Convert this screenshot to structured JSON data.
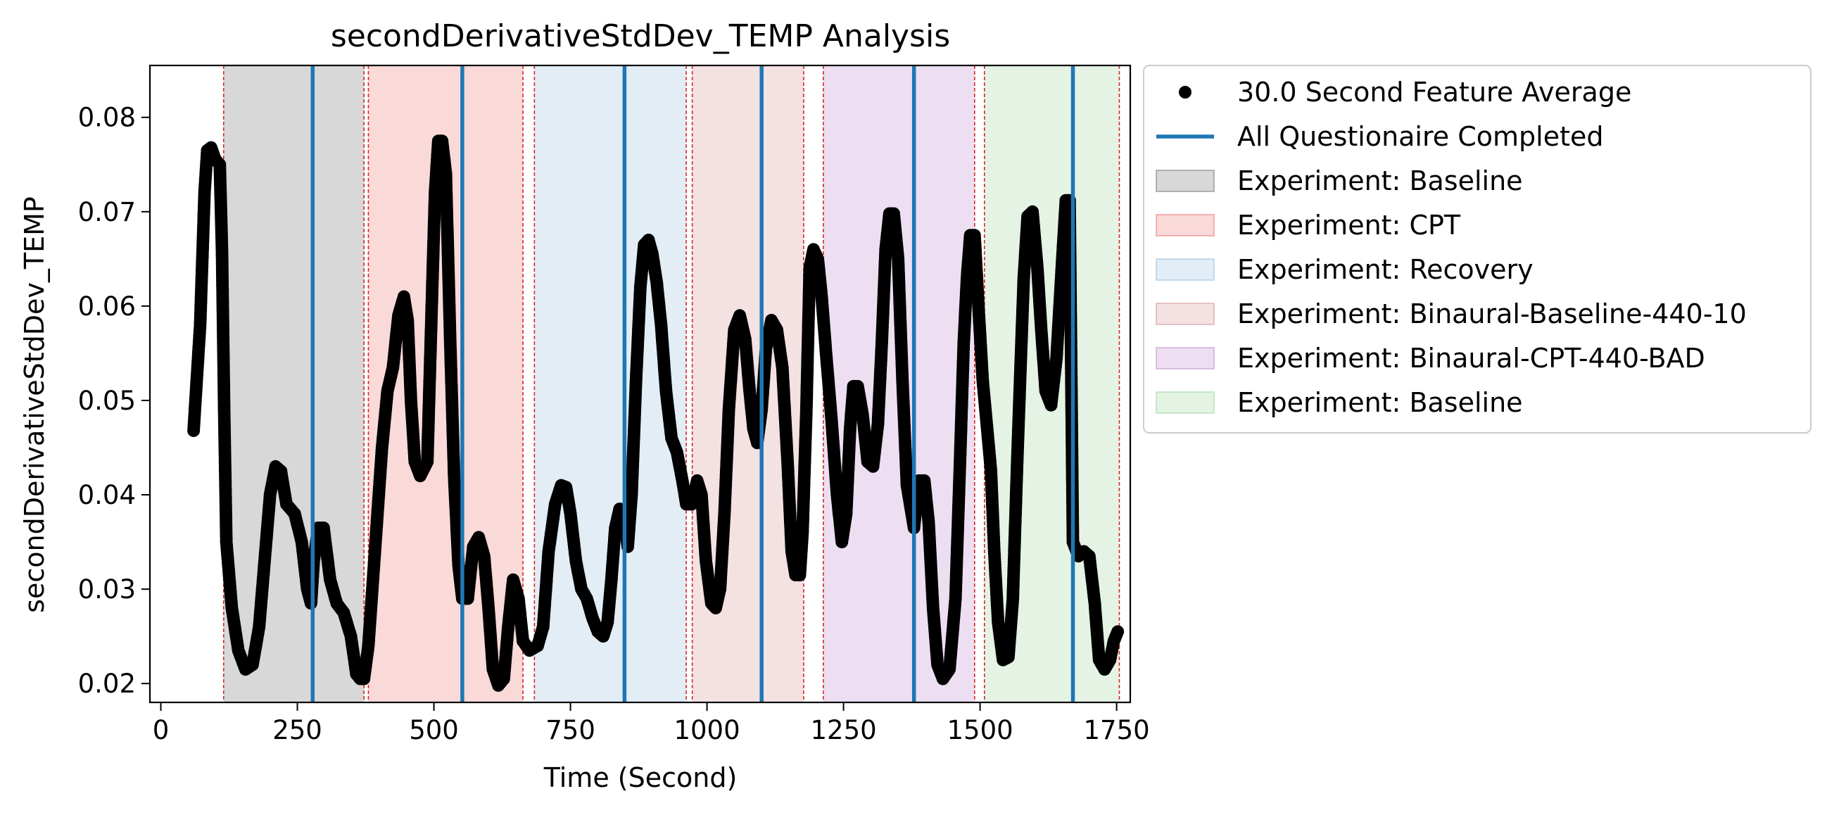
{
  "chart_data": {
    "type": "scatter",
    "title": "secondDerivativeStdDev_TEMP Analysis",
    "xlabel": "Time (Second)",
    "ylabel": "secondDerivativeStdDev_TEMP",
    "xlim": [
      -20,
      1775
    ],
    "ylim": [
      0.018,
      0.0855
    ],
    "xticks": [
      0,
      250,
      500,
      750,
      1000,
      1250,
      1500,
      1750
    ],
    "xtick_labels": [
      "0",
      "250",
      "500",
      "750",
      "1000",
      "1250",
      "1500",
      "1750"
    ],
    "yticks": [
      0.02,
      0.03,
      0.04,
      0.05,
      0.06,
      0.07,
      0.08
    ],
    "ytick_labels": [
      "0.02",
      "0.03",
      "0.04",
      "0.05",
      "0.06",
      "0.07",
      "0.08"
    ],
    "grid": false,
    "legend_placement": "outside-right-top",
    "phases": [
      {
        "label": "Experiment: Baseline",
        "start": 115,
        "end": 372,
        "color": "#7f7f7f"
      },
      {
        "label": "Experiment: CPT",
        "start": 380,
        "end": 663,
        "color": "#f08080"
      },
      {
        "label": "Experiment: Recovery",
        "start": 684,
        "end": 962,
        "color": "#9ec3e0"
      },
      {
        "label": "Experiment: Binaural-Baseline-440-10",
        "start": 973,
        "end": 1177,
        "color": "#d99a9f"
      },
      {
        "label": "Experiment: Binaural-CPT-440-BAD",
        "start": 1213,
        "end": 1490,
        "color": "#c394cf"
      },
      {
        "label": "Experiment: Baseline",
        "start": 1508,
        "end": 1755,
        "color": "#a6d8a6"
      }
    ],
    "boundaries": [
      115,
      372,
      380,
      663,
      684,
      962,
      973,
      1177,
      1213,
      1490,
      1508,
      1755
    ],
    "questionnaire_completed": [
      278,
      552,
      849,
      1100,
      1379,
      1670
    ],
    "series": [
      {
        "name": "30.0 Second Feature Average",
        "marker": "circle",
        "color": "#000000",
        "points": [
          [
            60,
            0.0468
          ],
          [
            72,
            0.058
          ],
          [
            80,
            0.072
          ],
          [
            85,
            0.0765
          ],
          [
            92,
            0.0768
          ],
          [
            100,
            0.0755
          ],
          [
            108,
            0.075
          ],
          [
            112,
            0.066
          ],
          [
            116,
            0.049
          ],
          [
            120,
            0.035
          ],
          [
            130,
            0.028
          ],
          [
            142,
            0.0235
          ],
          [
            155,
            0.0215
          ],
          [
            168,
            0.022
          ],
          [
            180,
            0.026
          ],
          [
            190,
            0.033
          ],
          [
            200,
            0.04
          ],
          [
            210,
            0.043
          ],
          [
            220,
            0.0425
          ],
          [
            230,
            0.039
          ],
          [
            245,
            0.038
          ],
          [
            258,
            0.035
          ],
          [
            268,
            0.03
          ],
          [
            275,
            0.0285
          ],
          [
            280,
            0.033
          ],
          [
            288,
            0.0365
          ],
          [
            298,
            0.0365
          ],
          [
            310,
            0.031
          ],
          [
            322,
            0.0285
          ],
          [
            335,
            0.0275
          ],
          [
            348,
            0.025
          ],
          [
            358,
            0.021
          ],
          [
            365,
            0.0205
          ],
          [
            372,
            0.0205
          ],
          [
            380,
            0.024
          ],
          [
            392,
            0.034
          ],
          [
            405,
            0.045
          ],
          [
            415,
            0.051
          ],
          [
            425,
            0.0535
          ],
          [
            435,
            0.059
          ],
          [
            445,
            0.061
          ],
          [
            452,
            0.0585
          ],
          [
            458,
            0.05
          ],
          [
            465,
            0.0435
          ],
          [
            475,
            0.042
          ],
          [
            488,
            0.0435
          ],
          [
            497,
            0.062
          ],
          [
            502,
            0.072
          ],
          [
            508,
            0.0775
          ],
          [
            515,
            0.0775
          ],
          [
            522,
            0.074
          ],
          [
            530,
            0.056
          ],
          [
            537,
            0.042
          ],
          [
            545,
            0.0325
          ],
          [
            552,
            0.029
          ],
          [
            562,
            0.029
          ],
          [
            572,
            0.0345
          ],
          [
            582,
            0.0355
          ],
          [
            592,
            0.0335
          ],
          [
            600,
            0.028
          ],
          [
            608,
            0.0215
          ],
          [
            618,
            0.0198
          ],
          [
            628,
            0.0205
          ],
          [
            636,
            0.026
          ],
          [
            645,
            0.031
          ],
          [
            655,
            0.029
          ],
          [
            663,
            0.0245
          ],
          [
            675,
            0.0235
          ],
          [
            690,
            0.024
          ],
          [
            700,
            0.026
          ],
          [
            710,
            0.034
          ],
          [
            722,
            0.039
          ],
          [
            733,
            0.041
          ],
          [
            742,
            0.0408
          ],
          [
            750,
            0.038
          ],
          [
            760,
            0.033
          ],
          [
            770,
            0.03
          ],
          [
            780,
            0.029
          ],
          [
            790,
            0.027
          ],
          [
            800,
            0.0255
          ],
          [
            810,
            0.025
          ],
          [
            818,
            0.0265
          ],
          [
            825,
            0.031
          ],
          [
            832,
            0.0365
          ],
          [
            840,
            0.0385
          ],
          [
            849,
            0.037
          ],
          [
            855,
            0.0345
          ],
          [
            862,
            0.04
          ],
          [
            870,
            0.052
          ],
          [
            878,
            0.062
          ],
          [
            885,
            0.0665
          ],
          [
            893,
            0.067
          ],
          [
            900,
            0.0655
          ],
          [
            908,
            0.0625
          ],
          [
            916,
            0.058
          ],
          [
            925,
            0.051
          ],
          [
            935,
            0.046
          ],
          [
            945,
            0.0445
          ],
          [
            955,
            0.0415
          ],
          [
            962,
            0.039
          ],
          [
            972,
            0.039
          ],
          [
            982,
            0.0415
          ],
          [
            990,
            0.04
          ],
          [
            998,
            0.033
          ],
          [
            1008,
            0.0285
          ],
          [
            1016,
            0.028
          ],
          [
            1024,
            0.03
          ],
          [
            1032,
            0.038
          ],
          [
            1040,
            0.049
          ],
          [
            1050,
            0.0575
          ],
          [
            1060,
            0.059
          ],
          [
            1070,
            0.0565
          ],
          [
            1078,
            0.051
          ],
          [
            1085,
            0.047
          ],
          [
            1092,
            0.0455
          ],
          [
            1100,
            0.049
          ],
          [
            1108,
            0.0555
          ],
          [
            1118,
            0.0585
          ],
          [
            1128,
            0.0575
          ],
          [
            1138,
            0.0535
          ],
          [
            1148,
            0.043
          ],
          [
            1155,
            0.034
          ],
          [
            1162,
            0.0315
          ],
          [
            1170,
            0.0315
          ],
          [
            1175,
            0.036
          ],
          [
            1182,
            0.049
          ],
          [
            1188,
            0.064
          ],
          [
            1195,
            0.066
          ],
          [
            1203,
            0.065
          ],
          [
            1210,
            0.061
          ],
          [
            1218,
            0.055
          ],
          [
            1228,
            0.048
          ],
          [
            1238,
            0.04
          ],
          [
            1247,
            0.035
          ],
          [
            1255,
            0.038
          ],
          [
            1262,
            0.047
          ],
          [
            1268,
            0.0515
          ],
          [
            1276,
            0.0515
          ],
          [
            1285,
            0.0485
          ],
          [
            1294,
            0.0435
          ],
          [
            1304,
            0.043
          ],
          [
            1313,
            0.0475
          ],
          [
            1320,
            0.056
          ],
          [
            1327,
            0.066
          ],
          [
            1334,
            0.0698
          ],
          [
            1342,
            0.0698
          ],
          [
            1350,
            0.065
          ],
          [
            1358,
            0.052
          ],
          [
            1366,
            0.041
          ],
          [
            1379,
            0.0365
          ],
          [
            1388,
            0.0415
          ],
          [
            1398,
            0.0415
          ],
          [
            1406,
            0.037
          ],
          [
            1414,
            0.028
          ],
          [
            1422,
            0.022
          ],
          [
            1432,
            0.0205
          ],
          [
            1444,
            0.0215
          ],
          [
            1455,
            0.029
          ],
          [
            1463,
            0.043
          ],
          [
            1470,
            0.056
          ],
          [
            1476,
            0.063
          ],
          [
            1482,
            0.0675
          ],
          [
            1490,
            0.0675
          ],
          [
            1497,
            0.06
          ],
          [
            1505,
            0.052
          ],
          [
            1513,
            0.047
          ],
          [
            1520,
            0.0425
          ],
          [
            1526,
            0.034
          ],
          [
            1533,
            0.0265
          ],
          [
            1542,
            0.0225
          ],
          [
            1552,
            0.0228
          ],
          [
            1560,
            0.029
          ],
          [
            1568,
            0.0435
          ],
          [
            1575,
            0.055
          ],
          [
            1580,
            0.063
          ],
          [
            1587,
            0.0695
          ],
          [
            1596,
            0.07
          ],
          [
            1605,
            0.064
          ],
          [
            1612,
            0.0575
          ],
          [
            1620,
            0.051
          ],
          [
            1630,
            0.0495
          ],
          [
            1640,
            0.0545
          ],
          [
            1650,
            0.0645
          ],
          [
            1657,
            0.0712
          ],
          [
            1664,
            0.0712
          ],
          [
            1670,
            0.035
          ],
          [
            1680,
            0.0335
          ],
          [
            1690,
            0.034
          ],
          [
            1700,
            0.0335
          ],
          [
            1710,
            0.0285
          ],
          [
            1718,
            0.0225
          ],
          [
            1728,
            0.0215
          ],
          [
            1738,
            0.0225
          ],
          [
            1745,
            0.0245
          ],
          [
            1752,
            0.0255
          ]
        ]
      }
    ],
    "legend": [
      {
        "kind": "marker",
        "label": "30.0 Second Feature Average",
        "color": "#000000"
      },
      {
        "kind": "line",
        "label": "All Questionaire Completed",
        "color": "#1f77b4"
      },
      {
        "kind": "patch",
        "label": "Experiment: Baseline",
        "color": "#7f7f7f"
      },
      {
        "kind": "patch",
        "label": "Experiment: CPT",
        "color": "#f08080"
      },
      {
        "kind": "patch",
        "label": "Experiment: Recovery",
        "color": "#9ec3e0"
      },
      {
        "kind": "patch",
        "label": "Experiment: Binaural-Baseline-440-10",
        "color": "#d99a9f"
      },
      {
        "kind": "patch",
        "label": "Experiment: Binaural-CPT-440-BAD",
        "color": "#c394cf"
      },
      {
        "kind": "patch",
        "label": "Experiment: Baseline",
        "color": "#a6d8a6"
      }
    ],
    "colors": {
      "questionnaire_line": "#1f77b4",
      "boundary_line": "#d62728",
      "points": "#000000"
    }
  }
}
